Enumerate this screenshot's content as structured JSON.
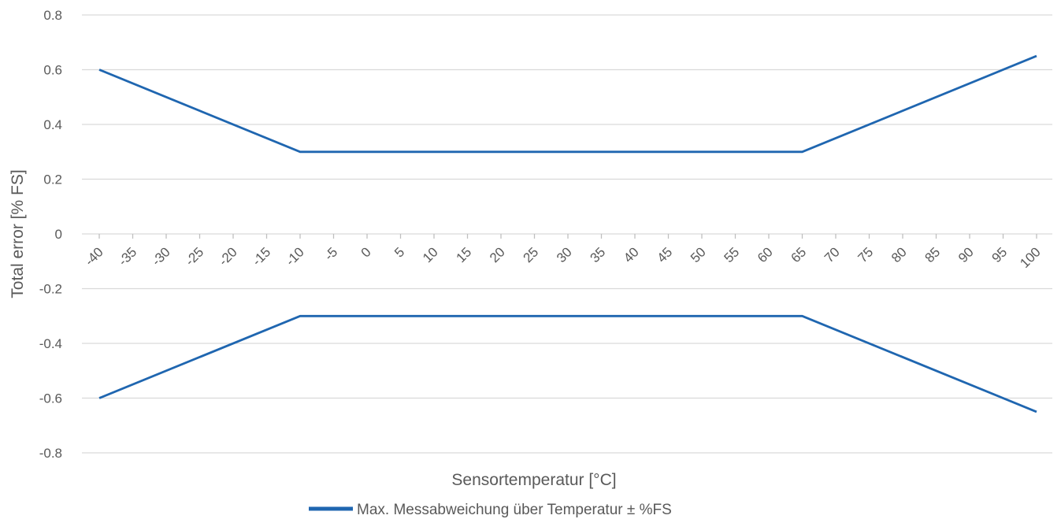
{
  "chart_data": {
    "type": "line",
    "x": [
      -40,
      -35,
      -30,
      -25,
      -20,
      -15,
      -10,
      -5,
      0,
      5,
      10,
      15,
      20,
      25,
      30,
      35,
      40,
      45,
      50,
      55,
      60,
      65,
      70,
      75,
      80,
      85,
      90,
      95,
      100
    ],
    "x_tick_labels": [
      "-40",
      "-35",
      "-30",
      "-25",
      "-20",
      "-15",
      "-10",
      "-5",
      "0",
      "5",
      "10",
      "15",
      "20",
      "25",
      "30",
      "35",
      "40",
      "45",
      "50",
      "55",
      "60",
      "65",
      "70",
      "75",
      "80",
      "85",
      "90",
      "95",
      "100"
    ],
    "y_ticks": [
      0.8,
      0.6,
      0.4,
      0.2,
      0,
      -0.2,
      -0.4,
      -0.6,
      -0.8
    ],
    "y_tick_labels": [
      "0.8",
      "0.6",
      "0.4",
      "0.2",
      "0",
      "-0.2",
      "-0.4",
      "-0.6",
      "-0.8"
    ],
    "ylim": [
      -0.8,
      0.8
    ],
    "xlabel": "Sensortemperatur [°C]",
    "ylabel": "Total error [% FS]",
    "grid": true,
    "legend_position": "bottom",
    "series_color": "#1f66b0",
    "series": [
      {
        "name": "Max. Messabweichung über Temperatur ± %FS",
        "points": [
          [
            -40,
            0.6
          ],
          [
            -10,
            0.3
          ],
          [
            65,
            0.3
          ],
          [
            100,
            0.65
          ]
        ]
      },
      {
        "name": "",
        "points": [
          [
            -40,
            -0.6
          ],
          [
            -10,
            -0.3
          ],
          [
            65,
            -0.3
          ],
          [
            100,
            -0.65
          ]
        ]
      }
    ]
  }
}
